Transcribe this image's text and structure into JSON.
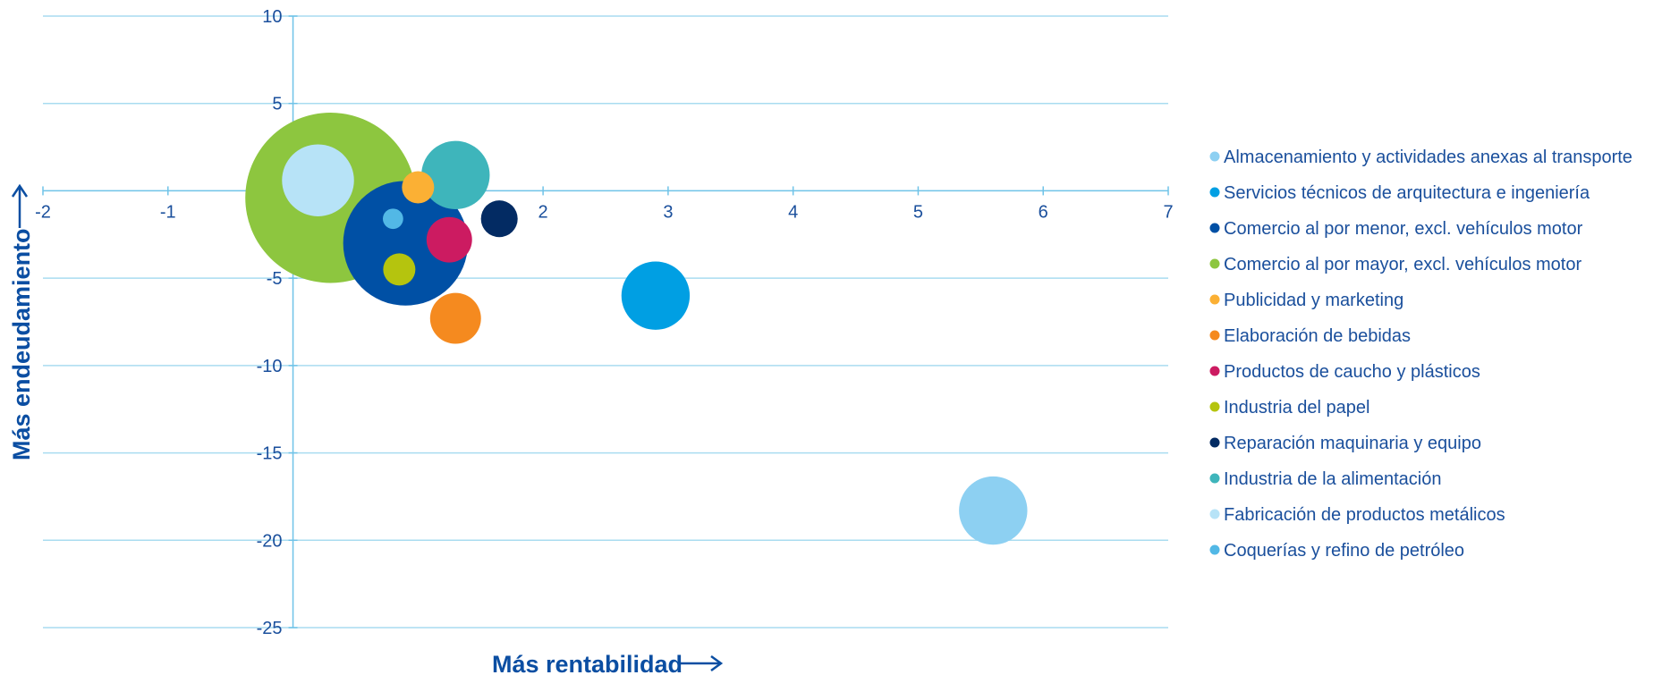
{
  "chart_data": {
    "type": "bubble",
    "xlabel": "Más rentabilidad",
    "ylabel": "Más endeudamiento",
    "xlim": [
      -2,
      7
    ],
    "ylim": [
      -25,
      10
    ],
    "xticks": [
      -2,
      -1,
      0,
      1,
      2,
      3,
      4,
      5,
      6,
      7
    ],
    "yticks": [
      10,
      5,
      0,
      -5,
      -10,
      -15,
      -20,
      -25
    ],
    "grid": true,
    "legend_position": "right",
    "series": [
      {
        "name": "Almacenamiento y actividades anexas al transporte",
        "color": "#8dd0f2",
        "x": 5.6,
        "y": -18.3,
        "size": 4.5
      },
      {
        "name": "Servicios técnicos de arquitectura e ingeniería",
        "color": "#009fe3",
        "x": 2.9,
        "y": -6.0,
        "size": 4.5
      },
      {
        "name": "Comercio al por menor, excl. vehículos motor",
        "color": "#0050a5",
        "x": 0.9,
        "y": -3.0,
        "size": 15.0
      },
      {
        "name": "Comercio al por mayor, excl. vehículos motor",
        "color": "#8dc63f",
        "x": 0.3,
        "y": -0.4,
        "size": 28.0
      },
      {
        "name": "Publicidad y marketing",
        "color": "#fbb034",
        "x": 1.0,
        "y": 0.2,
        "size": 1.0
      },
      {
        "name": "Elaboración de bebidas",
        "color": "#f58a1f",
        "x": 1.3,
        "y": -7.3,
        "size": 2.5
      },
      {
        "name": "Productos de caucho y plásticos",
        "color": "#cc1b61",
        "x": 1.25,
        "y": -2.8,
        "size": 2.0
      },
      {
        "name": "Industria del papel",
        "color": "#b5c40e",
        "x": 0.85,
        "y": -4.5,
        "size": 1.0
      },
      {
        "name": "Reparación maquinaria y equipo",
        "color": "#032b63",
        "x": 1.65,
        "y": -1.6,
        "size": 1.3
      },
      {
        "name": "Industria de la alimentación",
        "color": "#3eb5bb",
        "x": 1.3,
        "y": 0.9,
        "size": 4.5
      },
      {
        "name": "Fabricación de productos metálicos",
        "color": "#b7e3f7",
        "x": 0.2,
        "y": 0.6,
        "size": 5.0
      },
      {
        "name": "Coquerías y refino de petróleo",
        "color": "#52b8e6",
        "x": 0.8,
        "y": -1.6,
        "size": 0.4
      }
    ]
  }
}
